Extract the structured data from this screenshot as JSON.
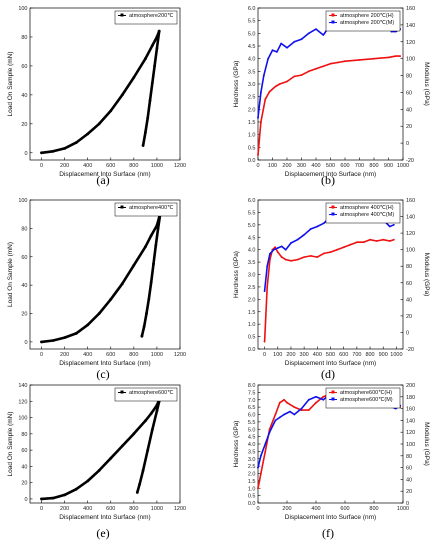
{
  "chart_data": [
    {
      "id": "a",
      "type": "line",
      "caption": "(a)",
      "xlabel": "Displacement Into Surface (nm)",
      "ylabel": "Load On Sample (mN)",
      "xlim": [
        -100,
        1200
      ],
      "ylim": [
        -5,
        100
      ],
      "xticks": [
        0,
        200,
        400,
        600,
        800,
        1000,
        1200
      ],
      "yticks": [
        0,
        20,
        40,
        60,
        80,
        100
      ],
      "legend": "top-right",
      "series": [
        {
          "name": "atmosphere200℃",
          "color": "#000000",
          "x": [
            0,
            100,
            200,
            300,
            400,
            500,
            600,
            700,
            800,
            900,
            960,
            1000,
            1020,
            1020,
            1000,
            980,
            960,
            940,
            920,
            900,
            880
          ],
          "y": [
            0,
            1,
            3,
            7,
            13,
            20,
            29,
            40,
            52,
            65,
            74,
            80,
            84,
            84,
            72,
            60,
            48,
            36,
            24,
            14,
            5
          ]
        }
      ]
    },
    {
      "id": "b",
      "type": "line",
      "caption": "(b)",
      "xlabel": "Displacement Into Surface (nm)",
      "ylabel": "Hardness (GPa)",
      "y2label": "Modulus (GPa)",
      "xlim": [
        0,
        1000
      ],
      "ylim": [
        0,
        6.0
      ],
      "y2lim": [
        -20,
        160
      ],
      "xticks": [
        0,
        100,
        200,
        300,
        400,
        500,
        600,
        700,
        800,
        900,
        1000
      ],
      "yticks": [
        0.0,
        0.5,
        1.0,
        1.5,
        2.0,
        2.5,
        3.0,
        3.5,
        4.0,
        4.5,
        5.0,
        5.5,
        6.0
      ],
      "y2ticks": [
        -20,
        0,
        20,
        40,
        60,
        80,
        100,
        120,
        140,
        160
      ],
      "legend": "top-right",
      "series": [
        {
          "name": "atmosphere 200℃(H)",
          "color": "#ee1111",
          "axis": "left",
          "x": [
            0,
            20,
            50,
            80,
            120,
            150,
            200,
            250,
            300,
            350,
            400,
            450,
            500,
            550,
            600,
            700,
            800,
            900,
            950,
            980
          ],
          "y": [
            0.2,
            1.5,
            2.4,
            2.7,
            2.9,
            3.0,
            3.1,
            3.3,
            3.35,
            3.5,
            3.6,
            3.7,
            3.8,
            3.85,
            3.9,
            3.95,
            4.0,
            4.05,
            4.1,
            4.1
          ]
        },
        {
          "name": "atmosphere 200℃(M)",
          "color": "#1111ee",
          "axis": "right",
          "x": [
            0,
            20,
            40,
            70,
            100,
            130,
            160,
            200,
            250,
            300,
            350,
            400,
            450,
            500,
            550,
            600,
            650,
            700,
            750,
            800,
            850,
            900,
            920,
            950,
            980
          ],
          "y": [
            30,
            60,
            80,
            100,
            110,
            108,
            118,
            113,
            120,
            123,
            130,
            135,
            128,
            140,
            138,
            142,
            140,
            140,
            144,
            142,
            140,
            144,
            132,
            132,
            135
          ]
        }
      ]
    },
    {
      "id": "c",
      "type": "line",
      "caption": "(c)",
      "xlabel": "Displacement Into Surface (nm)",
      "ylabel": "Load On Sample (mN)",
      "xlim": [
        -100,
        1200
      ],
      "ylim": [
        -5,
        100
      ],
      "xticks": [
        0,
        200,
        400,
        600,
        800,
        1000,
        1200
      ],
      "yticks": [
        0,
        20,
        40,
        60,
        80,
        100
      ],
      "legend": "top-right",
      "series": [
        {
          "name": "atmosphere400℃",
          "color": "#000000",
          "x": [
            0,
            100,
            200,
            300,
            400,
            500,
            600,
            700,
            800,
            900,
            950,
            1000,
            1030,
            1030,
            1010,
            990,
            970,
            950,
            930,
            910,
            890,
            870
          ],
          "y": [
            0,
            1,
            3,
            6,
            12,
            20,
            30,
            41,
            54,
            67,
            75,
            82,
            91,
            91,
            80,
            68,
            55,
            42,
            30,
            20,
            11,
            4
          ]
        }
      ]
    },
    {
      "id": "d",
      "type": "line",
      "caption": "(d)",
      "xlabel": "Displacement Into Surface (nm)",
      "ylabel": "Hardness (GPa)",
      "y2label": "Modulus (GPa)",
      "xlim": [
        -50,
        1050
      ],
      "ylim": [
        0,
        6.0
      ],
      "y2lim": [
        -20,
        160
      ],
      "xticks": [
        0,
        100,
        200,
        300,
        400,
        500,
        600,
        700,
        800,
        900,
        1000
      ],
      "yticks": [
        0.0,
        0.5,
        1.0,
        1.5,
        2.0,
        2.5,
        3.0,
        3.5,
        4.0,
        4.5,
        5.0,
        5.5,
        6.0
      ],
      "y2ticks": [
        -20,
        0,
        20,
        40,
        60,
        80,
        100,
        120,
        140,
        160
      ],
      "legend": "top-right",
      "series": [
        {
          "name": "atmosphere 400℃(H)",
          "color": "#ee1111",
          "axis": "left",
          "x": [
            0,
            20,
            40,
            60,
            80,
            100,
            130,
            160,
            200,
            250,
            300,
            350,
            400,
            450,
            500,
            550,
            600,
            650,
            700,
            750,
            800,
            850,
            900,
            950,
            980
          ],
          "y": [
            0.3,
            2.5,
            3.6,
            4.0,
            4.1,
            3.9,
            3.7,
            3.6,
            3.55,
            3.6,
            3.7,
            3.75,
            3.7,
            3.85,
            3.9,
            4.0,
            4.1,
            4.2,
            4.3,
            4.3,
            4.4,
            4.35,
            4.4,
            4.35,
            4.4
          ]
        },
        {
          "name": "atmosphere 400℃(M)",
          "color": "#1111ee",
          "axis": "right",
          "x": [
            0,
            20,
            40,
            70,
            100,
            130,
            160,
            200,
            250,
            300,
            350,
            400,
            450,
            500,
            550,
            600,
            650,
            700,
            750,
            800,
            850,
            900,
            950,
            980
          ],
          "y": [
            50,
            80,
            95,
            100,
            102,
            104,
            100,
            108,
            112,
            118,
            125,
            128,
            132,
            140,
            138,
            135,
            145,
            140,
            140,
            142,
            135,
            136,
            128,
            130
          ]
        }
      ]
    },
    {
      "id": "e",
      "type": "line",
      "caption": "(e)",
      "xlabel": "Displacement Into Surface (nm)",
      "ylabel": "Load On Sample (mN)",
      "xlim": [
        -100,
        1200
      ],
      "ylim": [
        -5,
        140
      ],
      "xticks": [
        0,
        200,
        400,
        600,
        800,
        1000,
        1200
      ],
      "yticks": [
        0,
        20,
        40,
        60,
        80,
        100,
        120,
        140
      ],
      "legend": "top-right",
      "series": [
        {
          "name": "atmosphere600℃",
          "color": "#000000",
          "x": [
            0,
            100,
            200,
            300,
            400,
            500,
            600,
            700,
            800,
            900,
            950,
            1000,
            1030,
            1030,
            1000,
            960,
            920,
            880,
            850,
            830
          ],
          "y": [
            0,
            1,
            5,
            12,
            22,
            35,
            50,
            65,
            80,
            96,
            105,
            115,
            126,
            126,
            108,
            85,
            60,
            35,
            18,
            8
          ]
        }
      ]
    },
    {
      "id": "f",
      "type": "line",
      "caption": "(f)",
      "xlabel": "Displacement Into Surface (nm)",
      "ylabel": "Hardness (GPa)",
      "y2label": "Modulus (GPa)",
      "xlim": [
        0,
        1000
      ],
      "ylim": [
        0,
        8.0
      ],
      "y2lim": [
        0,
        200
      ],
      "xticks": [
        0,
        200,
        400,
        600,
        800,
        1000
      ],
      "yticks": [
        0.0,
        0.5,
        1.0,
        1.5,
        2.0,
        2.5,
        3.0,
        3.5,
        4.0,
        4.5,
        5.0,
        5.5,
        6.0,
        6.5,
        7.0,
        7.5,
        8.0
      ],
      "y2ticks": [
        0,
        20,
        40,
        60,
        80,
        100,
        120,
        140,
        160,
        180,
        200
      ],
      "legend": "top-right",
      "series": [
        {
          "name": "atmosphere600℃(H)",
          "color": "#ee1111",
          "axis": "left",
          "x": [
            0,
            20,
            50,
            80,
            120,
            150,
            180,
            200,
            250,
            300,
            350,
            400,
            450,
            500,
            550,
            600,
            650,
            700,
            750,
            800,
            850,
            900,
            950,
            980
          ],
          "y": [
            1.0,
            2.0,
            3.5,
            5.0,
            6.0,
            6.8,
            7.0,
            6.8,
            6.5,
            6.3,
            6.3,
            6.8,
            7.2,
            7.4,
            7.5,
            7.5,
            7.6,
            7.4,
            7.2,
            7.0,
            6.8,
            6.7,
            6.6,
            6.5
          ]
        },
        {
          "name": "atmosphere600℃(M)",
          "color": "#1111ee",
          "axis": "right",
          "x": [
            0,
            20,
            50,
            80,
            120,
            150,
            180,
            220,
            250,
            300,
            350,
            400,
            450,
            500,
            550,
            600,
            650,
            700,
            750,
            800,
            850,
            900,
            950,
            980
          ],
          "y": [
            60,
            80,
            100,
            120,
            140,
            145,
            150,
            155,
            150,
            160,
            175,
            180,
            175,
            185,
            180,
            178,
            182,
            180,
            178,
            170,
            168,
            165,
            160,
            165
          ]
        }
      ]
    }
  ]
}
